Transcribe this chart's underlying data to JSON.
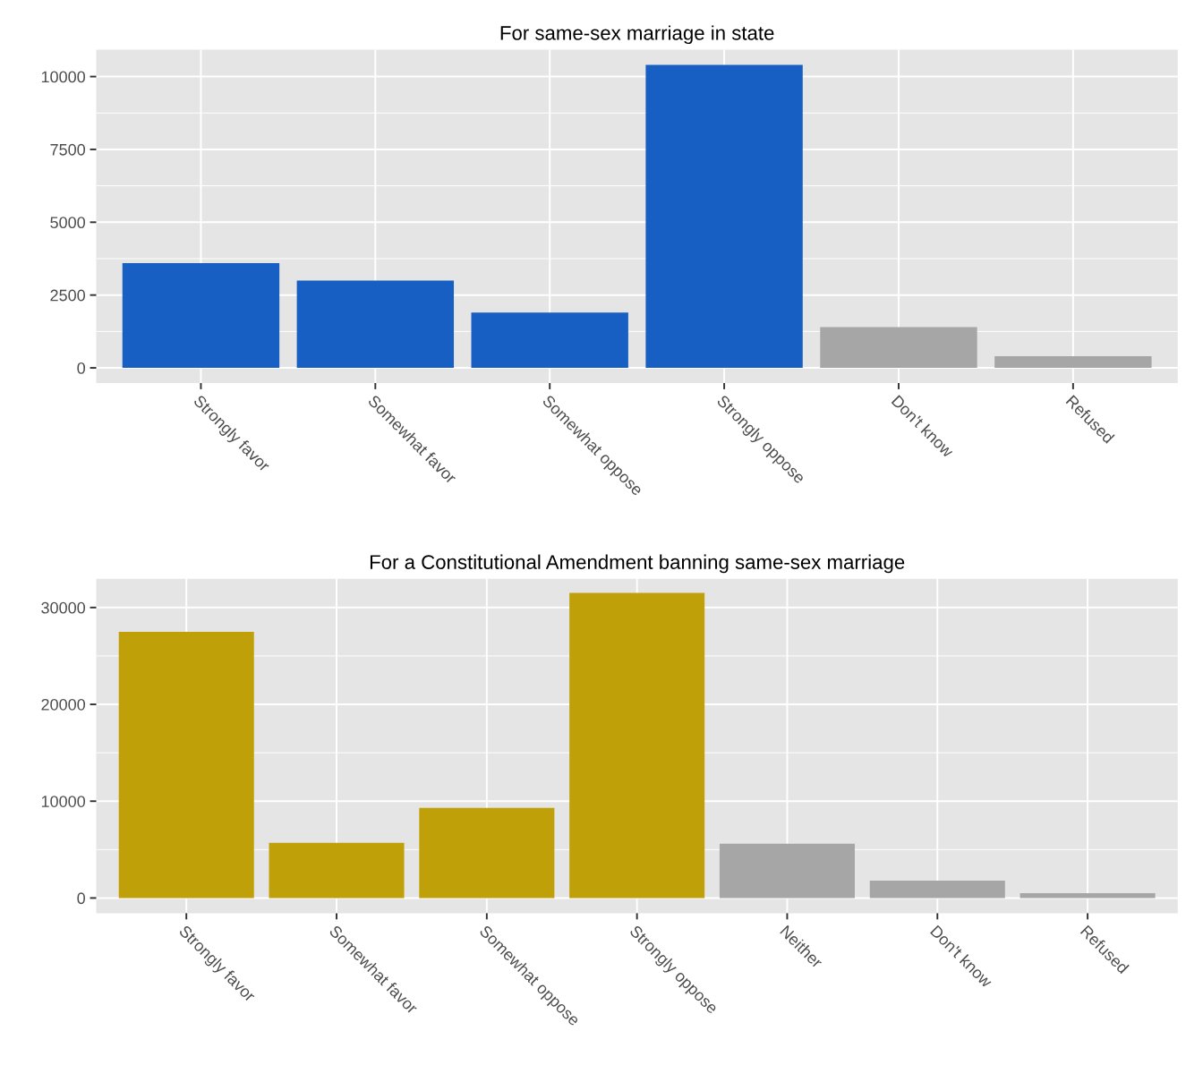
{
  "chart_data": [
    {
      "type": "bar",
      "title": "For same-sex marriage in state",
      "categories": [
        "Strongly favor",
        "Somewhat favor",
        "Somewhat oppose",
        "Strongly oppose",
        "Don't know",
        "Refused"
      ],
      "values": [
        3600,
        3000,
        1900,
        10400,
        1400,
        400
      ],
      "colors": [
        "#175fc3",
        "#175fc3",
        "#175fc3",
        "#175fc3",
        "#a6a6a6",
        "#a6a6a6"
      ],
      "ylim": [
        -520,
        10920
      ],
      "yticks": [
        0,
        2500,
        5000,
        7500,
        10000
      ],
      "grid": true
    },
    {
      "type": "bar",
      "title": "For a Constitutional Amendment banning same-sex marriage",
      "categories": [
        "Strongly favor",
        "Somewhat favor",
        "Somewhat oppose",
        "Strongly oppose",
        "Neither",
        "Don't know",
        "Refused"
      ],
      "values": [
        27500,
        5700,
        9300,
        31500,
        5600,
        1800,
        500
      ],
      "colors": [
        "#c0a008",
        "#c0a008",
        "#c0a008",
        "#c0a008",
        "#a6a6a6",
        "#a6a6a6",
        "#a6a6a6"
      ],
      "ylim": [
        -1570,
        32960
      ],
      "yticks": [
        0,
        10000,
        20000,
        30000
      ],
      "grid": true
    }
  ]
}
